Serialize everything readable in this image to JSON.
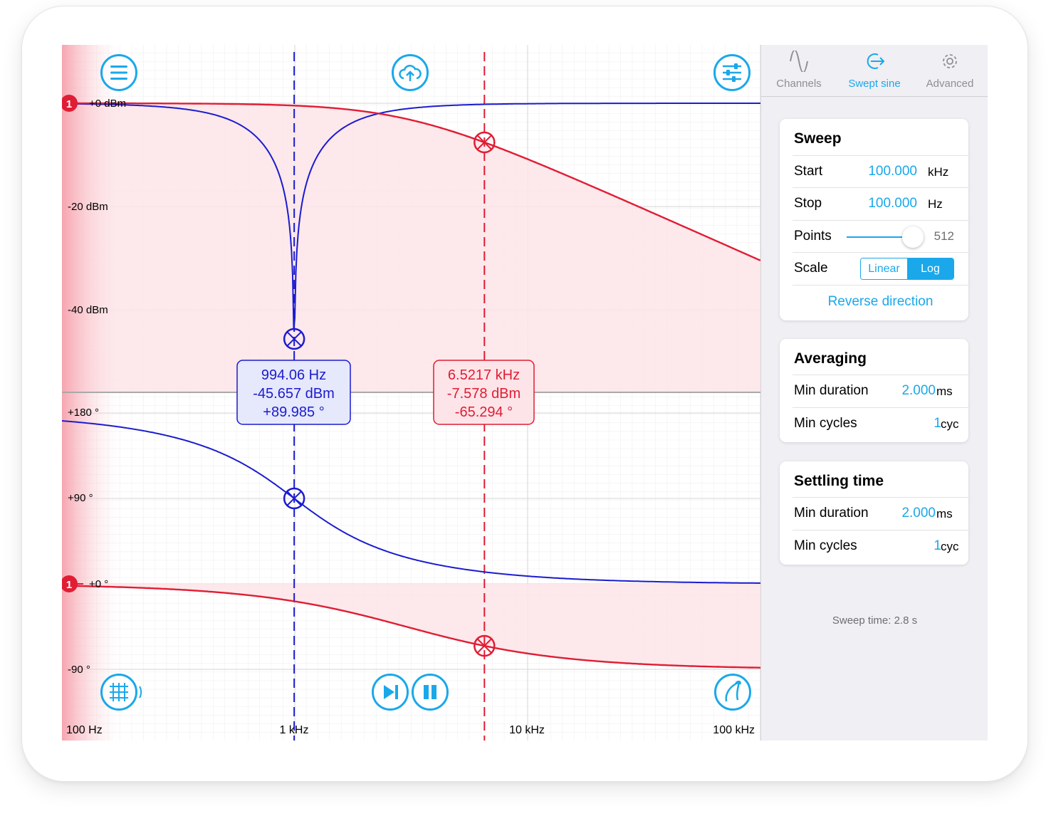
{
  "plot": {
    "magnitude_labels": [
      "+0 dBm",
      "-20 dBm",
      "-40 dBm"
    ],
    "phase_labels": [
      "+180 °",
      "+90 °",
      "+0 °",
      "-90 °"
    ],
    "freq_labels": [
      "100 Hz",
      "1 kHz",
      "10 kHz",
      "100 kHz"
    ],
    "channel_marker": "1",
    "cursor_blue": {
      "freq": "994.06 Hz",
      "mag": "-45.657 dBm",
      "phase": "+89.985 °"
    },
    "cursor_red": {
      "freq": "6.5217 kHz",
      "mag": "-7.578 dBm",
      "phase": "-65.294 °"
    }
  },
  "colors": {
    "accent": "#1aa8ea",
    "blue_trace": "#1b1bd0",
    "red_trace": "#e01d34"
  },
  "icons": {
    "menu": "menu-icon",
    "cloud": "cloud-upload-icon",
    "settings": "sliders-icon",
    "grid": "grid-icon",
    "step": "step-forward-icon",
    "pause": "pause-icon",
    "probe": "probe-icon"
  },
  "tabs": [
    {
      "label": "Channels",
      "icon": "sine-wave-icon"
    },
    {
      "label": "Swept sine",
      "icon": "swept-sine-icon"
    },
    {
      "label": "Advanced",
      "icon": "gear-icon"
    }
  ],
  "sweep": {
    "title": "Sweep",
    "start_label": "Start",
    "start_value": "100.000",
    "start_unit": "kHz",
    "stop_label": "Stop",
    "stop_value": "100.000",
    "stop_unit": "Hz",
    "points_label": "Points",
    "points_value": "512",
    "points_fraction": 0.9,
    "scale_label": "Scale",
    "scale_linear": "Linear",
    "scale_log": "Log",
    "reverse": "Reverse direction"
  },
  "averaging": {
    "title": "Averaging",
    "min_duration_label": "Min duration",
    "min_duration_value": "2.000",
    "min_duration_unit": "ms",
    "min_cycles_label": "Min cycles",
    "min_cycles_value": "1",
    "min_cycles_unit": "cyc"
  },
  "settling": {
    "title": "Settling time",
    "min_duration_label": "Min duration",
    "min_duration_value": "2.000",
    "min_duration_unit": "ms",
    "min_cycles_label": "Min cycles",
    "min_cycles_value": "1",
    "min_cycles_unit": "cyc"
  },
  "sweep_time": "Sweep time: 2.8 s"
}
